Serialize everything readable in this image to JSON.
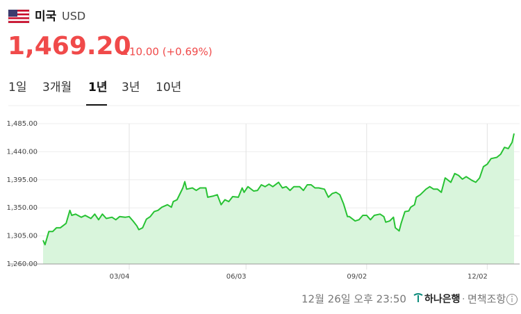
{
  "header": {
    "country": "미국",
    "currency": "USD",
    "price": "1,469.20",
    "change": "10.00 (+0.69%)"
  },
  "tabs": [
    "1일",
    "3개월",
    "1년",
    "3년",
    "10년"
  ],
  "footer": {
    "timestamp": "12월 26일 오후 23:50",
    "bank": "하나은행",
    "disclaimer": "면책조항"
  },
  "chart_data": {
    "type": "area",
    "color": "#27c233",
    "fill": "#d9f5dc",
    "grid": true,
    "x": [
      0,
      1,
      3,
      5,
      7,
      9,
      12,
      14,
      15,
      17,
      20,
      22,
      25,
      27,
      29,
      31,
      33,
      36,
      38,
      40,
      43,
      45,
      47,
      49,
      50,
      52,
      54,
      56,
      58,
      60,
      62,
      65,
      67,
      68,
      70,
      73,
      74,
      75,
      78,
      80,
      82,
      85,
      86,
      89,
      91,
      93,
      95,
      97,
      99,
      102,
      104,
      105,
      107,
      110,
      112,
      114,
      116,
      118,
      120,
      123,
      125,
      127,
      129,
      131,
      134,
      136,
      138,
      140,
      142,
      144,
      147,
      149,
      151,
      153,
      155,
      157,
      159,
      160,
      163,
      165,
      167,
      169,
      171,
      173,
      176,
      178,
      179,
      181,
      183,
      184,
      186,
      187,
      189,
      191,
      192,
      194,
      195,
      197,
      200,
      202,
      204,
      206,
      208,
      210,
      213,
      215,
      217,
      219,
      221,
      224,
      226,
      228,
      230,
      232,
      234,
      237,
      239,
      241,
      243,
      245,
      246
    ],
    "values": [
      1298,
      1291,
      1312,
      1312,
      1318,
      1318,
      1325,
      1346,
      1338,
      1340,
      1335,
      1338,
      1333,
      1340,
      1331,
      1340,
      1333,
      1335,
      1331,
      1336,
      1335,
      1336,
      1329,
      1321,
      1315,
      1318,
      1332,
      1336,
      1344,
      1346,
      1351,
      1355,
      1351,
      1360,
      1363,
      1382,
      1392,
      1380,
      1382,
      1378,
      1382,
      1382,
      1367,
      1369,
      1371,
      1355,
      1363,
      1360,
      1368,
      1367,
      1382,
      1375,
      1384,
      1377,
      1378,
      1387,
      1384,
      1388,
      1384,
      1391,
      1382,
      1384,
      1378,
      1384,
      1384,
      1378,
      1387,
      1387,
      1382,
      1382,
      1380,
      1367,
      1373,
      1375,
      1371,
      1356,
      1336,
      1336,
      1329,
      1331,
      1338,
      1338,
      1331,
      1338,
      1340,
      1336,
      1327,
      1329,
      1335,
      1318,
      1313,
      1325,
      1344,
      1345,
      1351,
      1355,
      1367,
      1371,
      1380,
      1384,
      1380,
      1380,
      1375,
      1398,
      1391,
      1405,
      1402,
      1396,
      1400,
      1394,
      1391,
      1398,
      1416,
      1420,
      1429,
      1431,
      1436,
      1447,
      1445,
      1455,
      1469.2
    ],
    "xlim": [
      0,
      246
    ],
    "xticks": [
      {
        "value": 45,
        "label": "03/04"
      },
      {
        "value": 106,
        "label": "06/03"
      },
      {
        "value": 169,
        "label": "09/02"
      },
      {
        "value": 232,
        "label": "12/02"
      }
    ],
    "ylim": [
      1260,
      1485
    ],
    "yticks": [
      {
        "value": 1260,
        "label": "1,260.00"
      },
      {
        "value": 1305,
        "label": "1,305.00"
      },
      {
        "value": 1350,
        "label": "1,350.00"
      },
      {
        "value": 1395,
        "label": "1,395.00"
      },
      {
        "value": 1440,
        "label": "1,440.00"
      },
      {
        "value": 1485,
        "label": "1,485.00"
      }
    ]
  }
}
